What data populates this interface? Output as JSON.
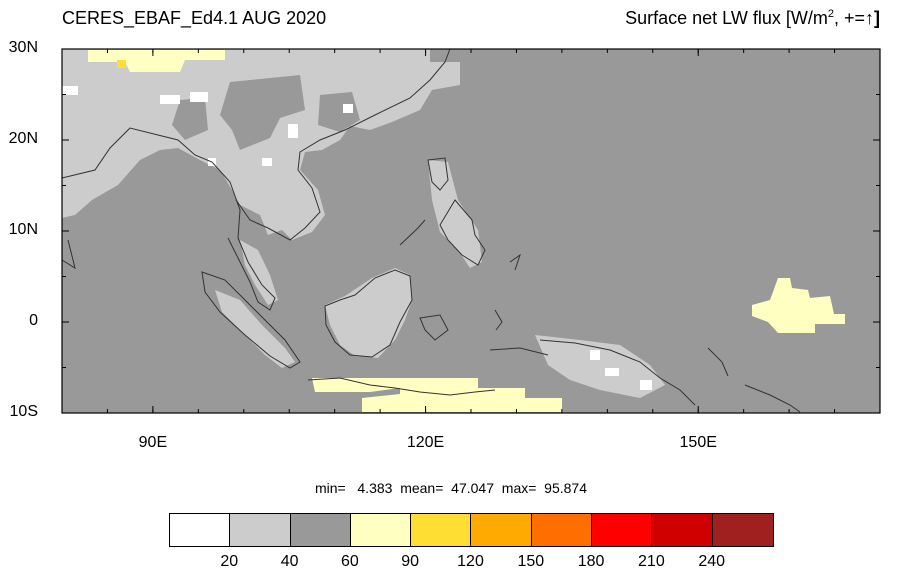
{
  "title_left": "CERES_EBAF_Ed4.1 AUG 2020",
  "title_right": {
    "text": "Surface net LW flux [W/m",
    "sup": "2",
    "suffix": ", +=",
    "arrow": "↑",
    "close": "]"
  },
  "map": {
    "lat_range": [
      -10,
      30
    ],
    "lon_range": [
      80,
      170
    ],
    "y_ticks": [
      {
        "label": "30N",
        "lat": 30
      },
      {
        "label": "20N",
        "lat": 20
      },
      {
        "label": "10N",
        "lat": 10
      },
      {
        "label": "0",
        "lat": 0
      },
      {
        "label": "10S",
        "lat": -10
      }
    ],
    "x_ticks": [
      {
        "label": "90E",
        "lon": 90
      },
      {
        "label": "120E",
        "lon": 120
      },
      {
        "label": "150E",
        "lon": 150
      }
    ],
    "background_color": "#999999",
    "land_high_color": "#cccccc",
    "warm_color": "#ffffc2"
  },
  "stats": {
    "text": "min=   4.383  mean=  47.047  max=  95.874"
  },
  "colorbar": {
    "colors": [
      "#ffffff",
      "#cccccc",
      "#999999",
      "#ffffc2",
      "#ffde33",
      "#ffaa00",
      "#ff6e00",
      "#ff0000",
      "#d00000",
      "#a01f1f"
    ],
    "labels": [
      "20",
      "40",
      "60",
      "90",
      "120",
      "150",
      "180",
      "210",
      "240"
    ]
  }
}
